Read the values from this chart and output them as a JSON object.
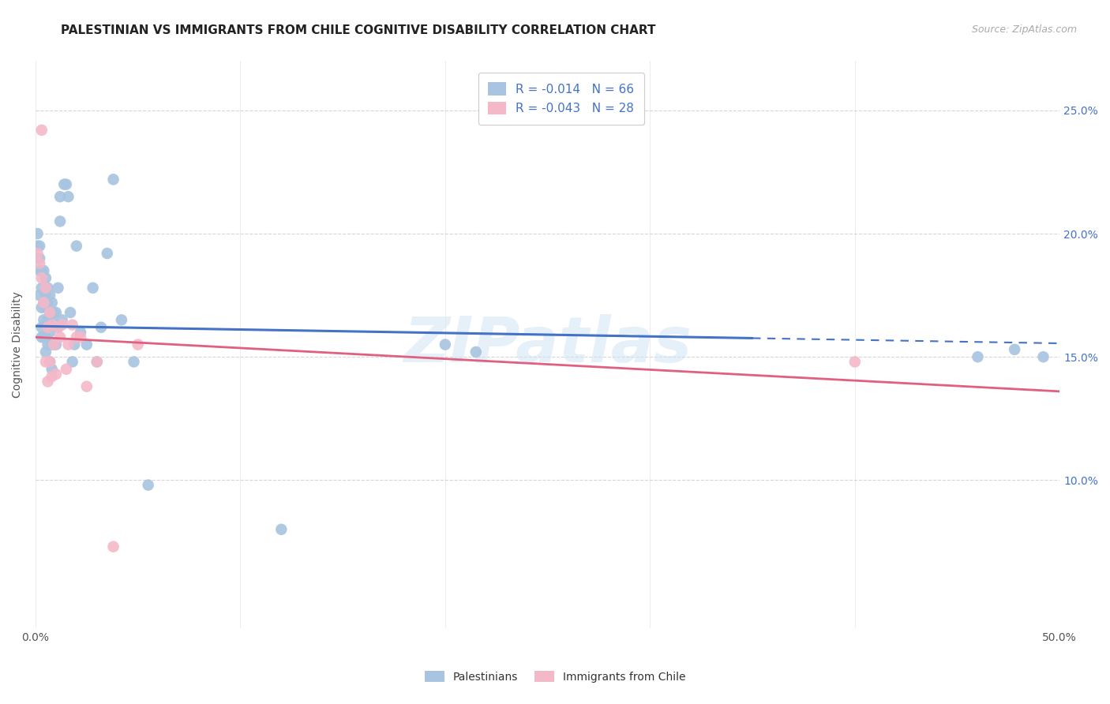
{
  "title": "PALESTINIAN VS IMMIGRANTS FROM CHILE COGNITIVE DISABILITY CORRELATION CHART",
  "source": "Source: ZipAtlas.com",
  "ylabel": "Cognitive Disability",
  "xlim": [
    0.0,
    0.5
  ],
  "ylim": [
    0.04,
    0.27
  ],
  "yticks": [
    0.1,
    0.15,
    0.2,
    0.25
  ],
  "xticks": [
    0.0,
    0.1,
    0.2,
    0.3,
    0.4,
    0.5
  ],
  "xtick_labels": [
    "0.0%",
    "",
    "",
    "",
    "",
    "50.0%"
  ],
  "ytick_labels": [
    "10.0%",
    "15.0%",
    "20.0%",
    "25.0%"
  ],
  "blue_R": "-0.014",
  "blue_N": "66",
  "pink_R": "-0.043",
  "pink_N": "28",
  "blue_color": "#a8c4e0",
  "pink_color": "#f4b8c8",
  "blue_line_color": "#4472c4",
  "pink_line_color": "#e06080",
  "blue_label": "Palestinians",
  "pink_label": "Immigrants from Chile",
  "legend_text_color": "#4472c4",
  "watermark": "ZIPatlas",
  "blue_x": [
    0.001,
    0.001,
    0.001,
    0.002,
    0.002,
    0.002,
    0.002,
    0.003,
    0.003,
    0.003,
    0.003,
    0.003,
    0.004,
    0.004,
    0.004,
    0.004,
    0.005,
    0.005,
    0.005,
    0.005,
    0.005,
    0.005,
    0.006,
    0.006,
    0.006,
    0.006,
    0.007,
    0.007,
    0.007,
    0.007,
    0.008,
    0.008,
    0.008,
    0.008,
    0.009,
    0.009,
    0.01,
    0.01,
    0.011,
    0.011,
    0.012,
    0.012,
    0.013,
    0.014,
    0.015,
    0.016,
    0.017,
    0.018,
    0.019,
    0.02,
    0.022,
    0.025,
    0.028,
    0.03,
    0.032,
    0.035,
    0.038,
    0.042,
    0.048,
    0.055,
    0.12,
    0.2,
    0.215,
    0.46,
    0.478,
    0.492
  ],
  "blue_y": [
    0.19,
    0.195,
    0.2,
    0.195,
    0.19,
    0.185,
    0.175,
    0.185,
    0.178,
    0.17,
    0.162,
    0.158,
    0.185,
    0.172,
    0.165,
    0.158,
    0.182,
    0.175,
    0.17,
    0.163,
    0.158,
    0.152,
    0.178,
    0.172,
    0.165,
    0.155,
    0.175,
    0.168,
    0.16,
    0.148,
    0.172,
    0.165,
    0.155,
    0.145,
    0.168,
    0.155,
    0.168,
    0.155,
    0.178,
    0.162,
    0.215,
    0.205,
    0.165,
    0.22,
    0.22,
    0.215,
    0.168,
    0.148,
    0.155,
    0.195,
    0.16,
    0.155,
    0.178,
    0.148,
    0.162,
    0.192,
    0.222,
    0.165,
    0.148,
    0.098,
    0.08,
    0.155,
    0.152,
    0.15,
    0.153,
    0.15
  ],
  "pink_x": [
    0.001,
    0.002,
    0.003,
    0.003,
    0.004,
    0.005,
    0.005,
    0.006,
    0.006,
    0.007,
    0.007,
    0.008,
    0.008,
    0.009,
    0.01,
    0.011,
    0.012,
    0.013,
    0.015,
    0.016,
    0.018,
    0.02,
    0.022,
    0.025,
    0.03,
    0.038,
    0.05,
    0.4
  ],
  "pink_y": [
    0.192,
    0.188,
    0.242,
    0.182,
    0.172,
    0.178,
    0.148,
    0.162,
    0.14,
    0.168,
    0.148,
    0.163,
    0.142,
    0.155,
    0.143,
    0.162,
    0.158,
    0.163,
    0.145,
    0.155,
    0.163,
    0.158,
    0.158,
    0.138,
    0.148,
    0.073,
    0.155,
    0.148
  ],
  "blue_trend_start_y": 0.1625,
  "blue_trend_end_y": 0.1555,
  "pink_trend_start_y": 0.158,
  "pink_trend_end_y": 0.136,
  "background_color": "#ffffff",
  "grid_color": "#cccccc",
  "title_fontsize": 11,
  "axis_label_fontsize": 10,
  "tick_fontsize": 10,
  "marker_size": 110
}
